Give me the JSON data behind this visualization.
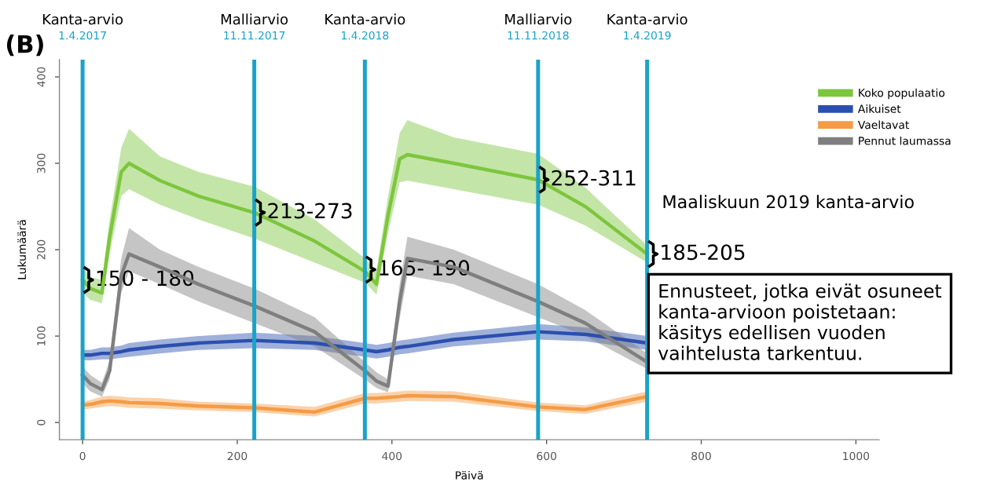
{
  "chart_data": {
    "type": "line",
    "title": "(B)",
    "xlabel": "Päivä",
    "ylabel": "Lukumäärä",
    "x": [
      0,
      10,
      25,
      35,
      50,
      60,
      100,
      150,
      222,
      300,
      365,
      380,
      395,
      410,
      420,
      480,
      589,
      650,
      730
    ],
    "series": [
      {
        "name": "Koko populaatio",
        "color": "#7dc63d",
        "values": [
          165,
          155,
          150,
          215,
          290,
          300,
          280,
          262,
          243,
          210,
          175,
          160,
          240,
          305,
          310,
          300,
          281,
          250,
          195
        ],
        "lower": [
          150,
          142,
          138,
          195,
          262,
          270,
          252,
          235,
          213,
          185,
          162,
          148,
          220,
          278,
          280,
          270,
          252,
          228,
          185
        ],
        "upper": [
          180,
          168,
          165,
          235,
          318,
          340,
          308,
          290,
          273,
          235,
          190,
          175,
          262,
          335,
          350,
          330,
          311,
          272,
          205
        ]
      },
      {
        "name": "Aikuiset",
        "color": "#2b4fae",
        "values": [
          78,
          78,
          80,
          80,
          82,
          84,
          88,
          92,
          95,
          92,
          84,
          82,
          84,
          87,
          88,
          96,
          105,
          102,
          92
        ],
        "lower": [
          72,
          72,
          73,
          73,
          75,
          76,
          80,
          84,
          86,
          84,
          76,
          74,
          76,
          79,
          80,
          88,
          96,
          94,
          84
        ],
        "upper": [
          84,
          84,
          87,
          87,
          89,
          92,
          96,
          100,
          104,
          100,
          92,
          90,
          92,
          95,
          96,
          104,
          114,
          110,
          100
        ]
      },
      {
        "name": "Vaeltavat",
        "color": "#f59b45",
        "values": [
          20,
          21,
          24,
          25,
          24,
          23,
          22,
          19,
          17,
          12,
          28,
          28,
          29,
          30,
          31,
          30,
          18,
          15,
          30
        ],
        "lower": [
          15,
          16,
          18,
          19,
          18,
          17,
          16,
          14,
          12,
          7,
          22,
          22,
          23,
          24,
          25,
          24,
          13,
          10,
          24
        ],
        "upper": [
          25,
          26,
          30,
          31,
          30,
          29,
          28,
          24,
          22,
          18,
          34,
          34,
          35,
          36,
          37,
          36,
          23,
          20,
          36
        ]
      },
      {
        "name": "Pennut laumassa",
        "color": "#7f7f7f",
        "values": [
          55,
          45,
          38,
          60,
          170,
          195,
          180,
          160,
          135,
          105,
          60,
          48,
          42,
          140,
          190,
          180,
          140,
          115,
          70
        ],
        "lower": [
          45,
          36,
          30,
          50,
          150,
          175,
          160,
          140,
          115,
          88,
          50,
          40,
          35,
          120,
          170,
          160,
          122,
          100,
          62
        ],
        "upper": [
          65,
          55,
          46,
          72,
          190,
          225,
          200,
          180,
          155,
          122,
          70,
          58,
          50,
          160,
          215,
          200,
          160,
          130,
          80
        ]
      }
    ],
    "xlim": [
      -30,
      1030
    ],
    "ylim": [
      -20,
      420
    ],
    "xticks": [
      0,
      200,
      400,
      600,
      800,
      1000
    ],
    "yticks": [
      0,
      100,
      200,
      300,
      400
    ],
    "ref_lines": [
      {
        "axis": "x",
        "value": 0,
        "label": "Kanta-arvio\n1.4.2017",
        "color": "#1aa3c8"
      },
      {
        "axis": "x",
        "value": 222,
        "label": "Malliarvio\n11.11.2017",
        "color": "#1aa3c8"
      },
      {
        "axis": "x",
        "value": 365,
        "label": "Kanta-arvio\n1.4.2018",
        "color": "#1aa3c8"
      },
      {
        "axis": "x",
        "value": 589,
        "label": "Malliarvio\n11.11.2018",
        "color": "#1aa3c8"
      },
      {
        "axis": "x",
        "value": 730,
        "label": "Kanta-arvio\n1.4.2019",
        "color": "#1aa3c8"
      }
    ],
    "annotations": [
      {
        "text": "150 - 180",
        "x": 0,
        "y": 165
      },
      {
        "text": "213-273",
        "x": 222,
        "y": 243
      },
      {
        "text": "165- 190",
        "x": 365,
        "y": 177
      },
      {
        "text": "252-311",
        "x": 589,
        "y": 281
      },
      {
        "text": "185-205",
        "x": 730,
        "y": 195
      },
      "Maaliskuun 2019 kanta-arvio",
      "Ennusteet, jotka eivät osuneet\nkanta-arvioon poistetaan:\nkäsitys edellisen vuoden\nvaihtelusta tarkentuu."
    ],
    "legend": "top right",
    "grid": false,
    "marker": "none",
    "line_style": "solid"
  }
}
